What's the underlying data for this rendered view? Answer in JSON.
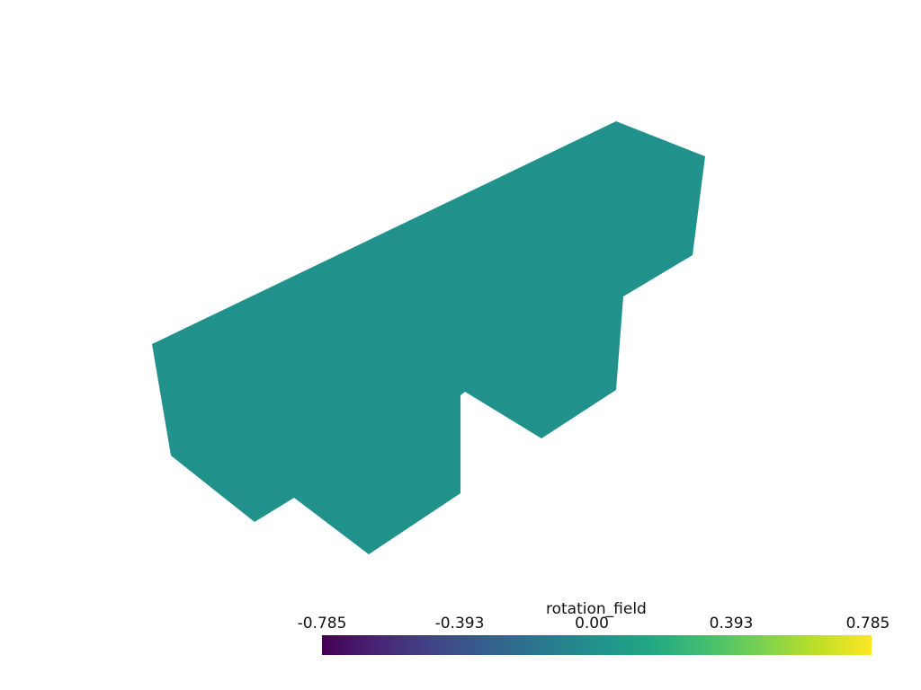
{
  "scene": {
    "mesh_color": "#21918c",
    "background_color": "#ffffff"
  },
  "colorbar": {
    "title": "rotation_field",
    "ticks": [
      "-0.785",
      "-0.393",
      "0.00",
      "0.393",
      "0.785"
    ],
    "range": [
      -0.785,
      0.785
    ],
    "colormap": "viridis"
  }
}
